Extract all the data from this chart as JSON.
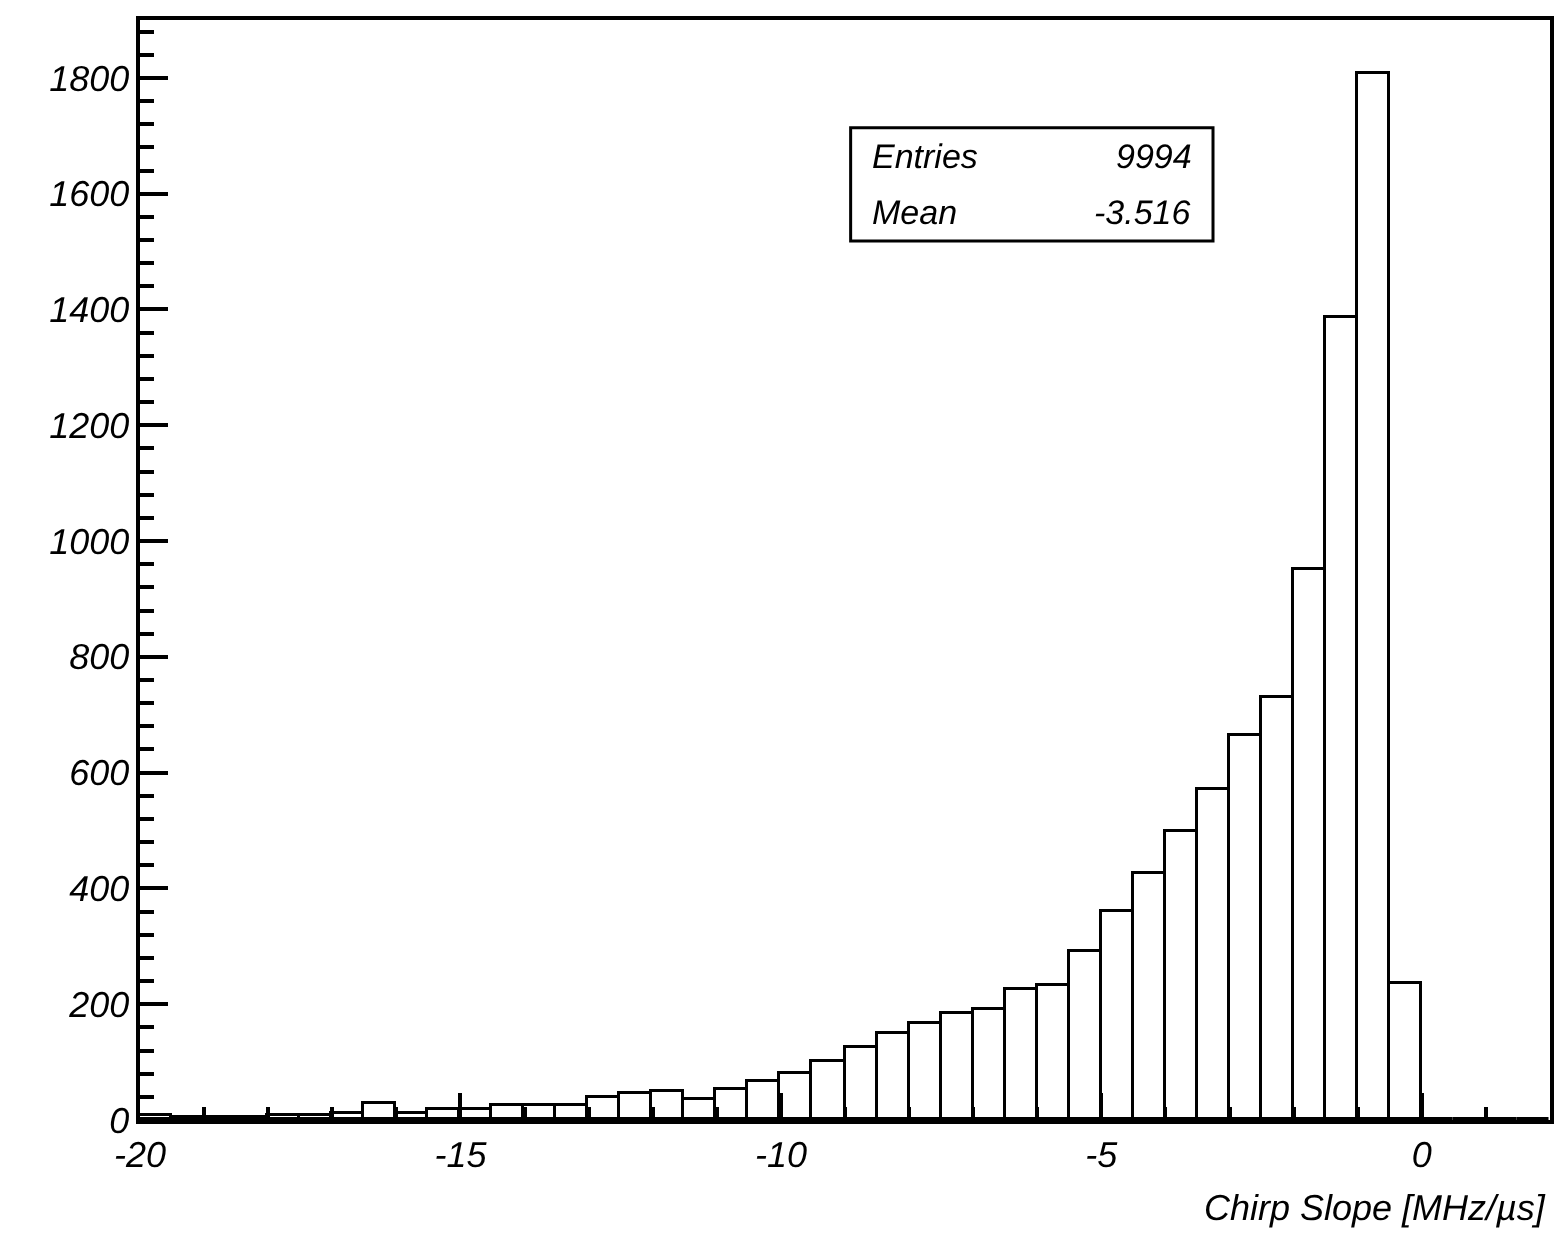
{
  "chart_data": {
    "type": "histogram",
    "xlabel": "Chirp Slope [MHz/µs]",
    "bins": [
      -20,
      -19.5,
      -19,
      -18.5,
      -18,
      -17.5,
      -17,
      -16.5,
      -16,
      -15.5,
      -15,
      -14.5,
      -14,
      -13.5,
      -13,
      -12.5,
      -12,
      -11.5,
      -11,
      -10.5,
      -10,
      -9.5,
      -9,
      -8.5,
      -8,
      -7.5,
      -7,
      -6.5,
      -6,
      -5.5,
      -5,
      -4.5,
      -4,
      -3.5,
      -3,
      -2.5,
      -2,
      -1.5,
      -1,
      -0.5,
      0,
      0.5,
      1,
      1.5,
      2
    ],
    "values": [
      7,
      5,
      5,
      5,
      7,
      7,
      11,
      27,
      11,
      16,
      16,
      25,
      25,
      25,
      38,
      45,
      49,
      36,
      53,
      64,
      78,
      100,
      126,
      150,
      167,
      184,
      189,
      223,
      231,
      290,
      360,
      425,
      497,
      571,
      663,
      728,
      949,
      1387,
      1807,
      236,
      0,
      0,
      0,
      0
    ],
    "color": "#000000",
    "xlim": [
      -20,
      2
    ],
    "xticks": [
      -20,
      {
        "value": -19,
        "label": null
      },
      {
        "value": -18,
        "label": null
      },
      {
        "value": -17,
        "label": null
      },
      {
        "value": -16,
        "label": null
      },
      -15,
      {
        "value": -14,
        "label": null
      },
      {
        "value": -13,
        "label": null
      },
      {
        "value": -12,
        "label": null
      },
      {
        "value": -11,
        "label": null
      },
      -10,
      {
        "value": -9,
        "label": null
      },
      {
        "value": -8,
        "label": null
      },
      {
        "value": -7,
        "label": null
      },
      {
        "value": -6,
        "label": null
      },
      -5,
      {
        "value": -4,
        "label": null
      },
      {
        "value": -3,
        "label": null
      },
      {
        "value": -2,
        "label": null
      },
      {
        "value": -1,
        "label": null
      },
      0,
      {
        "value": 1,
        "label": null
      }
    ],
    "ylim": [
      0,
      1900
    ],
    "yticks": [
      0,
      {
        "value": 40,
        "label": null
      },
      {
        "value": 80,
        "label": null
      },
      {
        "value": 120,
        "label": null
      },
      {
        "value": 160,
        "label": null
      },
      200,
      {
        "value": 240,
        "label": null
      },
      {
        "value": 280,
        "label": null
      },
      {
        "value": 320,
        "label": null
      },
      {
        "value": 360,
        "label": null
      },
      400,
      {
        "value": 440,
        "label": null
      },
      {
        "value": 480,
        "label": null
      },
      {
        "value": 520,
        "label": null
      },
      {
        "value": 560,
        "label": null
      },
      600,
      {
        "value": 640,
        "label": null
      },
      {
        "value": 680,
        "label": null
      },
      {
        "value": 720,
        "label": null
      },
      {
        "value": 760,
        "label": null
      },
      800,
      {
        "value": 840,
        "label": null
      },
      {
        "value": 880,
        "label": null
      },
      {
        "value": 920,
        "label": null
      },
      {
        "value": 960,
        "label": null
      },
      1000,
      {
        "value": 1040,
        "label": null
      },
      {
        "value": 1080,
        "label": null
      },
      {
        "value": 1120,
        "label": null
      },
      {
        "value": 1160,
        "label": null
      },
      1200,
      {
        "value": 1240,
        "label": null
      },
      {
        "value": 1280,
        "label": null
      },
      {
        "value": 1320,
        "label": null
      },
      {
        "value": 1360,
        "label": null
      },
      1400,
      {
        "value": 1440,
        "label": null
      },
      {
        "value": 1480,
        "label": null
      },
      {
        "value": 1520,
        "label": null
      },
      {
        "value": 1560,
        "label": null
      },
      1600,
      {
        "value": 1640,
        "label": null
      },
      {
        "value": 1680,
        "label": null
      },
      {
        "value": 1720,
        "label": null
      },
      {
        "value": 1760,
        "label": null
      },
      1800,
      {
        "value": 1840,
        "label": null
      },
      {
        "value": 1880,
        "label": null
      }
    ],
    "annotations": [
      "Entries",
      "9994",
      "Mean",
      "-3.516"
    ]
  }
}
